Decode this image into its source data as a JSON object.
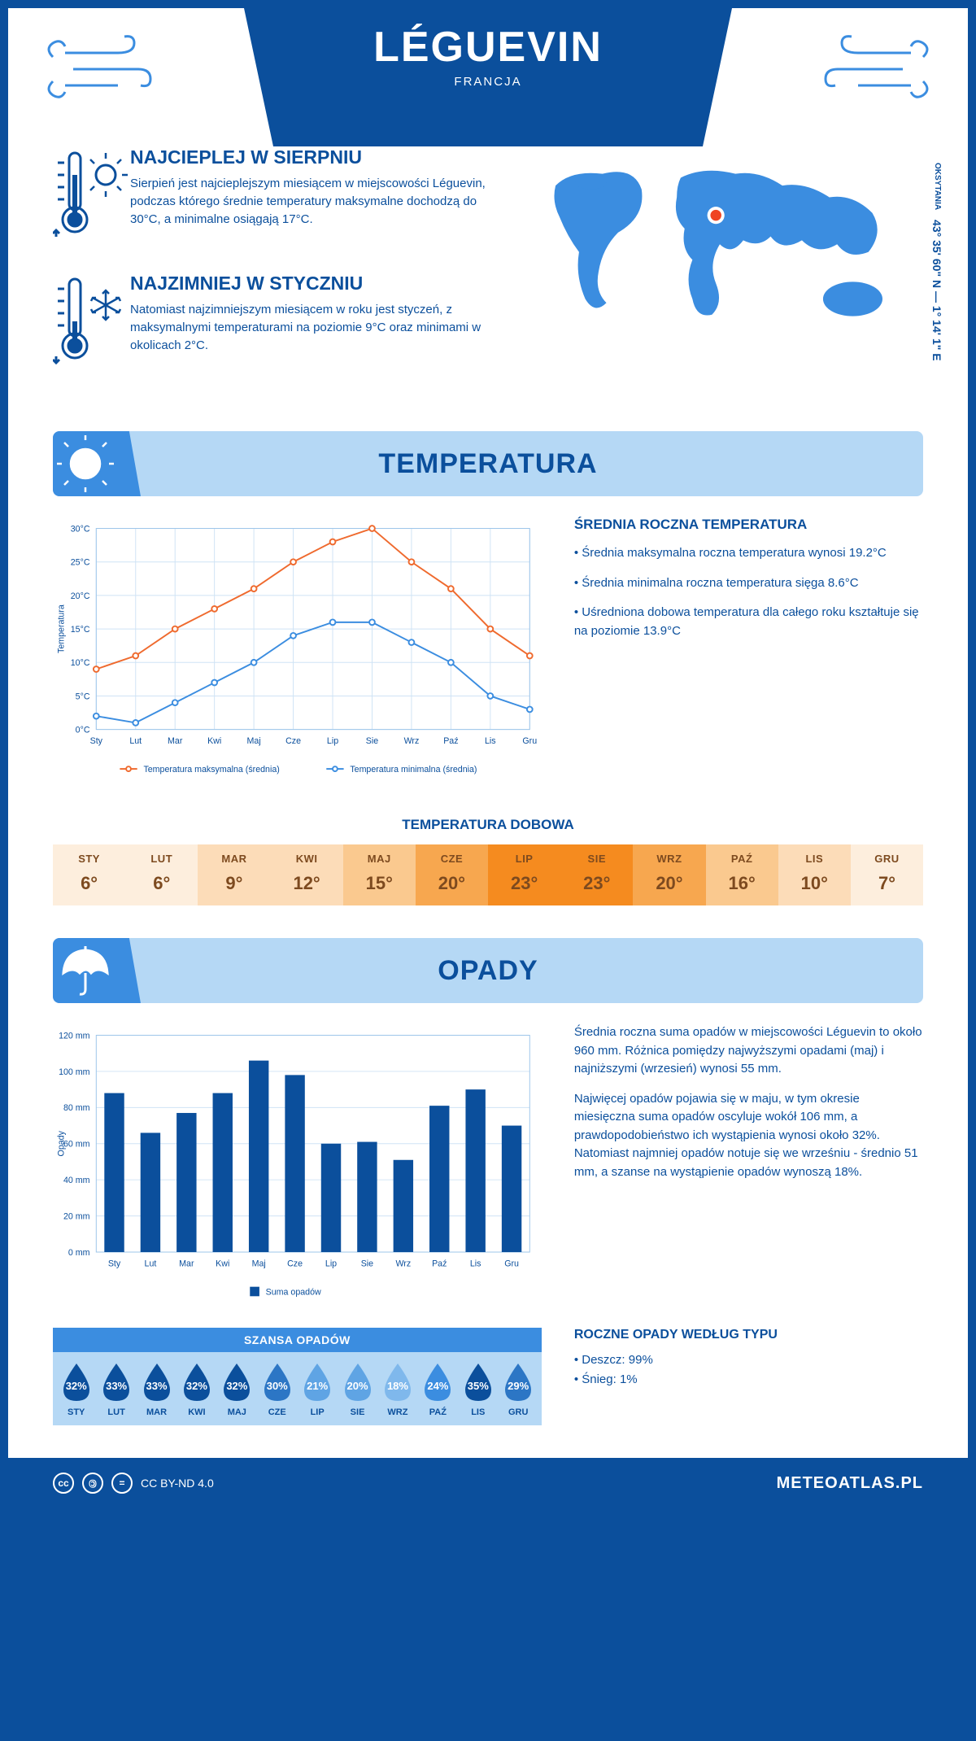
{
  "header": {
    "title": "LÉGUEVIN",
    "country": "FRANCJA",
    "coords": "43° 35' 60\" N — 1° 14' 1\" E",
    "region": "OKSYTANIA"
  },
  "facts": {
    "warm": {
      "title": "NAJCIEPLEJ W SIERPNIU",
      "text": "Sierpień jest najcieplejszym miesiącem w miejscowości Léguevin, podczas którego średnie temperatury maksymalne dochodzą do 30°C, a minimalne osiągają 17°C."
    },
    "cold": {
      "title": "NAJZIMNIEJ W STYCZNIU",
      "text": "Natomiast najzimniejszym miesiącem w roku jest styczeń, z maksymalnymi temperaturami na poziomie 9°C oraz minimami w okolicach 2°C."
    }
  },
  "months_short": [
    "Sty",
    "Lut",
    "Mar",
    "Kwi",
    "Maj",
    "Cze",
    "Lip",
    "Sie",
    "Wrz",
    "Paź",
    "Lis",
    "Gru"
  ],
  "months_upper": [
    "STY",
    "LUT",
    "MAR",
    "KWI",
    "MAJ",
    "CZE",
    "LIP",
    "SIE",
    "WRZ",
    "PAŹ",
    "LIS",
    "GRU"
  ],
  "temperature": {
    "section_title": "TEMPERATURA",
    "chart": {
      "type": "line",
      "ylabel": "Temperatura",
      "ylim": [
        0,
        30
      ],
      "ytick_step": 5,
      "ytick_suffix": "°C",
      "grid_color": "#cfe3f5",
      "series": [
        {
          "name": "Temperatura maksymalna (średnia)",
          "color": "#ef6a2e",
          "values": [
            9,
            11,
            15,
            18,
            21,
            25,
            28,
            30,
            25,
            21,
            15,
            11
          ]
        },
        {
          "name": "Temperatura minimalna (średnia)",
          "color": "#3b8de0",
          "values": [
            2,
            1,
            4,
            7,
            10,
            14,
            16,
            16,
            13,
            10,
            5,
            3
          ]
        }
      ]
    },
    "info": {
      "title": "ŚREDNIA ROCZNA TEMPERATURA",
      "bullets": [
        "Średnia maksymalna roczna temperatura wynosi 19.2°C",
        "Średnia minimalna roczna temperatura sięga 8.6°C",
        "Uśredniona dobowa temperatura dla całego roku kształtuje się na poziomie 13.9°C"
      ]
    },
    "daily": {
      "title": "TEMPERATURA DOBOWA",
      "values": [
        6,
        6,
        9,
        12,
        15,
        20,
        23,
        23,
        20,
        16,
        10,
        7
      ],
      "colors": [
        "#fdeedd",
        "#fdeedd",
        "#fcdcb8",
        "#fcdcb8",
        "#fac98f",
        "#f7a74f",
        "#f58b1f",
        "#f58b1f",
        "#f7a74f",
        "#fac98f",
        "#fcdcb8",
        "#fdeedd"
      ]
    }
  },
  "precip": {
    "section_title": "OPADY",
    "chart": {
      "type": "bar",
      "ylabel": "Opady",
      "ylim": [
        0,
        120
      ],
      "ytick_step": 20,
      "ytick_suffix": " mm",
      "bar_color": "#0b4f9c",
      "grid_color": "#cfe3f5",
      "legend": "Suma opadów",
      "values": [
        88,
        66,
        77,
        88,
        106,
        98,
        60,
        61,
        51,
        81,
        90,
        70
      ]
    },
    "info": {
      "p1": "Średnia roczna suma opadów w miejscowości Léguevin to około 960 mm. Różnica pomiędzy najwyższymi opadami (maj) i najniższymi (wrzesień) wynosi 55 mm.",
      "p2": "Najwięcej opadów pojawia się w maju, w tym okresie miesięczna suma opadów oscyluje wokół 106 mm, a prawdopodobieństwo ich wystąpienia wynosi około 32%. Natomiast najmniej opadów notuje się we wrześniu - średnio 51 mm, a szanse na wystąpienie opadów wynoszą 18%."
    },
    "chance": {
      "title": "SZANSA OPADÓW",
      "values": [
        32,
        33,
        33,
        32,
        32,
        30,
        21,
        20,
        18,
        24,
        35,
        29
      ],
      "colors": [
        "#0b4f9c",
        "#0b4f9c",
        "#0b4f9c",
        "#0b4f9c",
        "#0b4f9c",
        "#2c76c5",
        "#5fa4e4",
        "#5fa4e4",
        "#7fb8ec",
        "#3b8de0",
        "#0b4f9c",
        "#2c76c5"
      ]
    },
    "types": {
      "title": "ROCZNE OPADY WEDŁUG TYPU",
      "items": [
        "Deszcz: 99%",
        "Śnieg: 1%"
      ]
    }
  },
  "footer": {
    "license": "CC BY-ND 4.0",
    "site": "METEOATLAS.PL"
  }
}
